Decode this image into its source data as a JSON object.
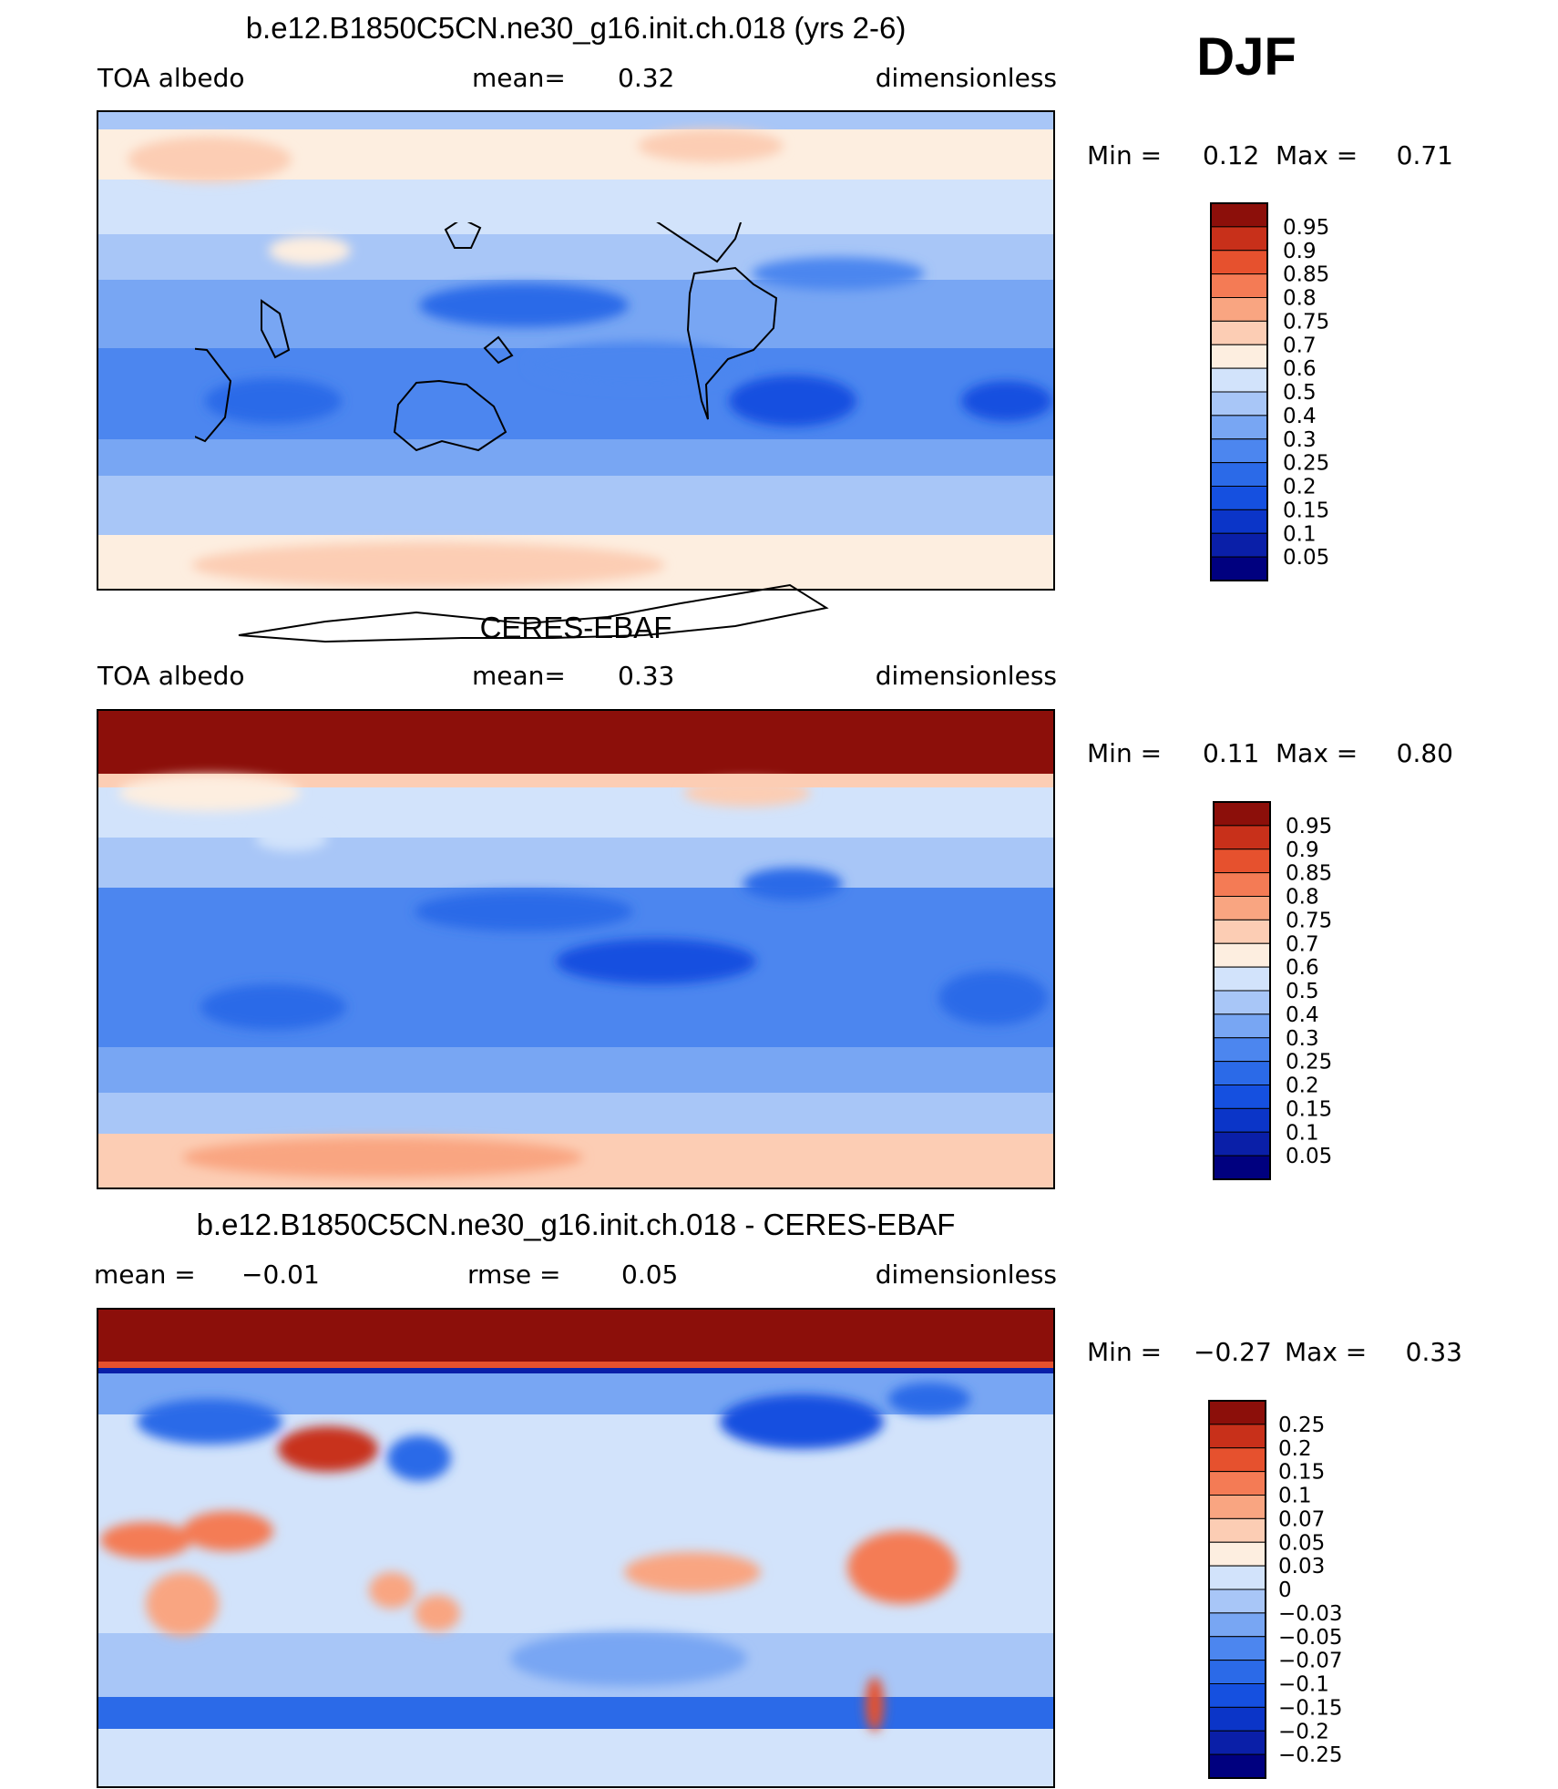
{
  "season": "DJF",
  "palettes": {
    "albedo": [
      "#00007f",
      "#0a1fa8",
      "#0b35c8",
      "#1550e0",
      "#2b6ae8",
      "#4c86ef",
      "#78a6f3",
      "#a8c6f7",
      "#d2e3fb",
      "#fdeee0",
      "#fccdb4",
      "#f9a581",
      "#f47b55",
      "#e6512e",
      "#c8301a",
      "#8c0f0a"
    ],
    "diff": [
      "#00007f",
      "#0a1fa8",
      "#0b35c8",
      "#1550e0",
      "#2b6ae8",
      "#4c86ef",
      "#78a6f3",
      "#a8c6f7",
      "#d2e3fb",
      "#fdeee0",
      "#fccdb4",
      "#f9a581",
      "#f47b55",
      "#e6512e",
      "#c8301a",
      "#8c0f0a"
    ]
  },
  "panels": [
    {
      "title": "b.e12.B1850C5CN.ne30_g16.init.ch.018 (yrs 2-6)",
      "left": "TOA albedo",
      "mean_label": "mean=",
      "mean": "0.32",
      "right": "dimensionless",
      "min_label": "Min =",
      "min": "0.12",
      "max_label": "Max =",
      "max": "0.71",
      "levels": [
        "0.95",
        "0.9",
        "0.85",
        "0.8",
        "0.75",
        "0.7",
        "0.6",
        "0.5",
        "0.4",
        "0.3",
        "0.25",
        "0.2",
        "0.15",
        "0.1",
        "0.05"
      ]
    },
    {
      "title": "CERES-EBAF",
      "left": "TOA albedo",
      "mean_label": "mean=",
      "mean": "0.33",
      "right": "dimensionless",
      "min_label": "Min =",
      "min": "0.11",
      "max_label": "Max =",
      "max": "0.80",
      "levels": [
        "0.95",
        "0.9",
        "0.85",
        "0.8",
        "0.75",
        "0.7",
        "0.6",
        "0.5",
        "0.4",
        "0.3",
        "0.25",
        "0.2",
        "0.15",
        "0.1",
        "0.05"
      ]
    },
    {
      "title": "b.e12.B1850C5CN.ne30_g16.init.ch.018 - CERES-EBAF",
      "left": "mean =",
      "mean": "−0.01",
      "rmse_label": "rmse =",
      "rmse": "0.05",
      "right": "dimensionless",
      "min_label": "Min =",
      "min": "−0.27",
      "max_label": "Max =",
      "max": "0.33",
      "levels": [
        "0.25",
        "0.2",
        "0.15",
        "0.1",
        "0.07",
        "0.05",
        "0.03",
        "0",
        "−0.03",
        "−0.05",
        "−0.07",
        "−0.1",
        "−0.15",
        "−0.2",
        "−0.25"
      ]
    }
  ],
  "chart_data": [
    {
      "type": "heatmap",
      "title": "b.e12.B1850C5CN.ne30_g16.init.ch.018 (yrs 2-6)",
      "variable": "TOA albedo",
      "units": "dimensionless",
      "mean": 0.32,
      "min": 0.12,
      "max": 0.71,
      "color_levels": [
        0.05,
        0.1,
        0.15,
        0.2,
        0.25,
        0.3,
        0.4,
        0.5,
        0.6,
        0.7,
        0.75,
        0.8,
        0.85,
        0.9,
        0.95
      ]
    },
    {
      "type": "heatmap",
      "title": "CERES-EBAF",
      "variable": "TOA albedo",
      "units": "dimensionless",
      "mean": 0.33,
      "min": 0.11,
      "max": 0.8,
      "color_levels": [
        0.05,
        0.1,
        0.15,
        0.2,
        0.25,
        0.3,
        0.4,
        0.5,
        0.6,
        0.7,
        0.75,
        0.8,
        0.85,
        0.9,
        0.95
      ]
    },
    {
      "type": "heatmap",
      "title": "b.e12.B1850C5CN.ne30_g16.init.ch.018 - CERES-EBAF",
      "units": "dimensionless",
      "mean": -0.01,
      "rmse": 0.05,
      "min": -0.27,
      "max": 0.33,
      "color_levels": [
        -0.25,
        -0.2,
        -0.15,
        -0.1,
        -0.07,
        -0.05,
        -0.03,
        0,
        0.03,
        0.05,
        0.07,
        0.1,
        0.15,
        0.2,
        0.25
      ]
    }
  ]
}
